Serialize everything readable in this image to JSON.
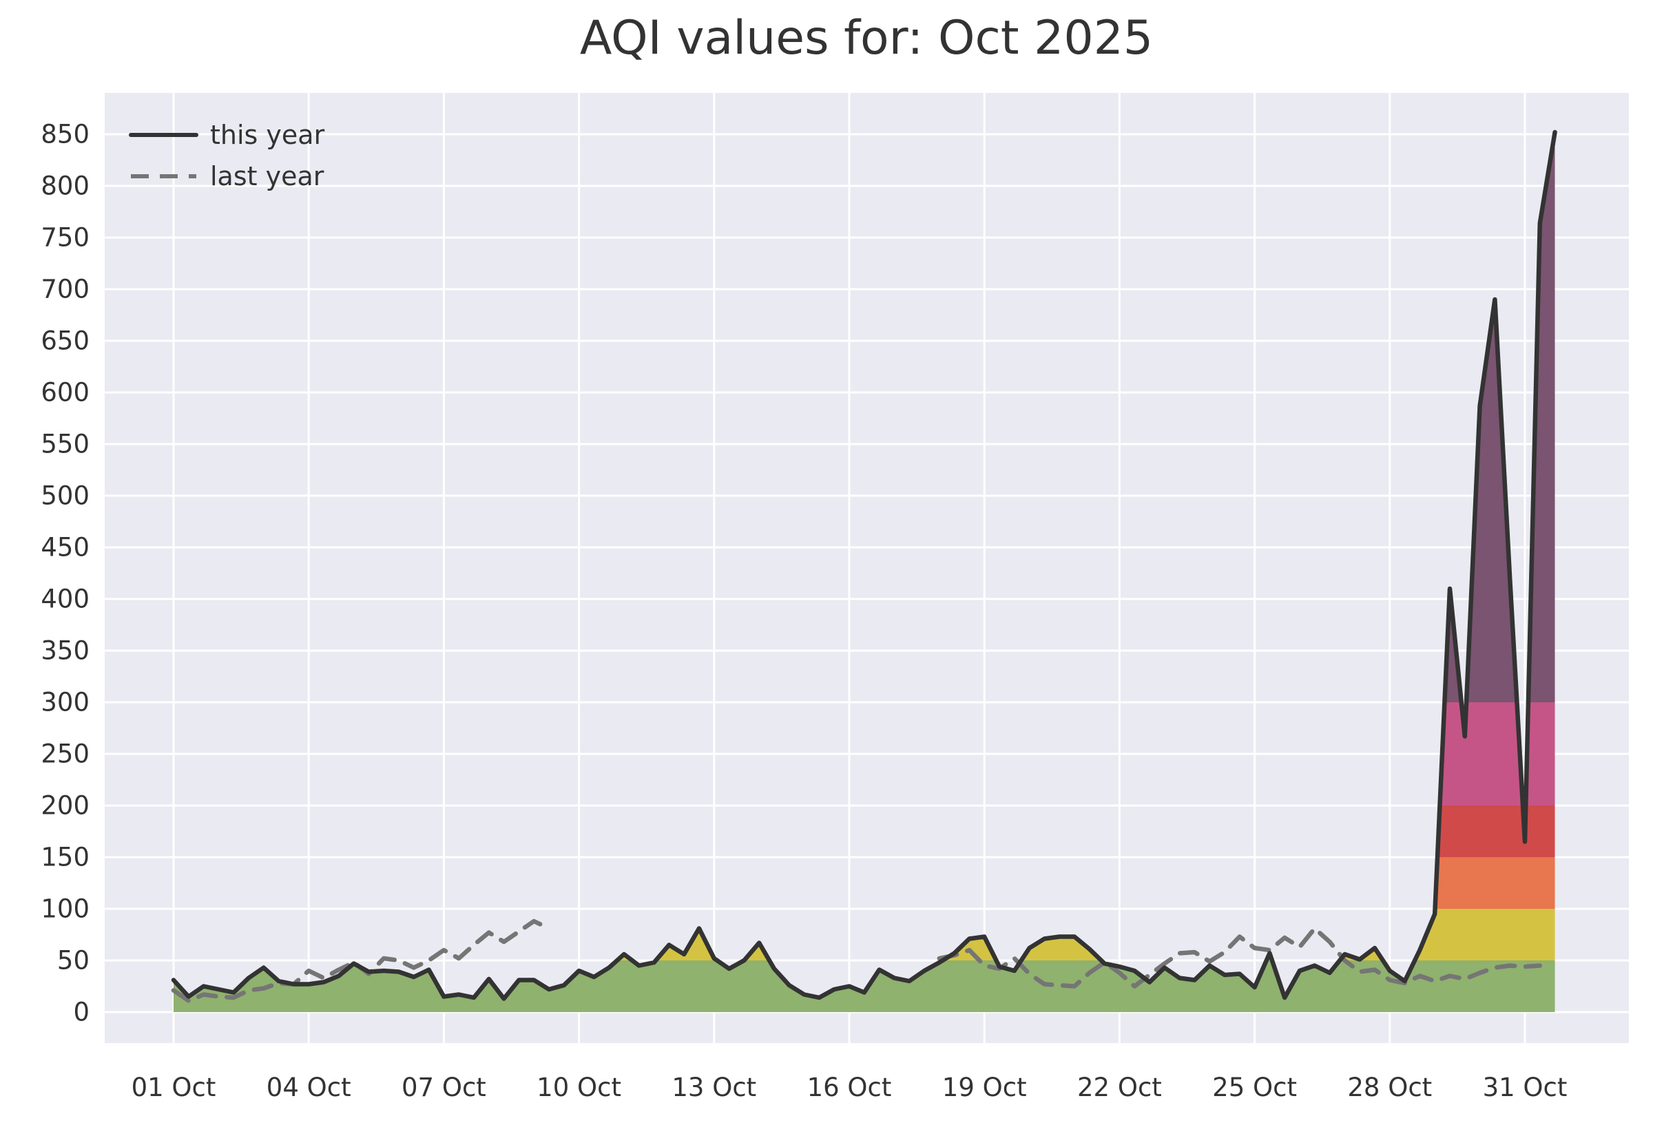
{
  "chart_data": {
    "type": "line",
    "title": "AQI values for: Oct 2025",
    "xlabel": "",
    "ylabel": "",
    "x_start_label": "01 Oct",
    "points_per_day": 3,
    "x_tick_labels": [
      "01 Oct",
      "04 Oct",
      "07 Oct",
      "10 Oct",
      "13 Oct",
      "16 Oct",
      "19 Oct",
      "22 Oct",
      "25 Oct",
      "28 Oct",
      "31 Oct"
    ],
    "x_tick_days": [
      0,
      3,
      6,
      9,
      12,
      15,
      18,
      21,
      24,
      27,
      30
    ],
    "y_ticks": [
      0,
      50,
      100,
      150,
      200,
      250,
      300,
      350,
      400,
      450,
      500,
      550,
      600,
      650,
      700,
      750,
      800,
      850
    ],
    "ylim": [
      0,
      890
    ],
    "grid": true,
    "legend_position": "upper-left",
    "series": [
      {
        "name": "this year",
        "style": "solid",
        "color": "#333333",
        "values": [
          31,
          15,
          25,
          22,
          19,
          33,
          43,
          30,
          27,
          27,
          29,
          35,
          47,
          39,
          40,
          39,
          34,
          41,
          15,
          17,
          14,
          32,
          13,
          31,
          31,
          22,
          26,
          40,
          34,
          43,
          56,
          45,
          48,
          65,
          56,
          81,
          52,
          42,
          50,
          67,
          42,
          26,
          17,
          14,
          22,
          25,
          19,
          41,
          33,
          30,
          40,
          48,
          57,
          71,
          73,
          44,
          40,
          62,
          71,
          73,
          73,
          61,
          47,
          44,
          40,
          29,
          43,
          33,
          31,
          45,
          36,
          37,
          24,
          57,
          14,
          40,
          45,
          38,
          56,
          51,
          62,
          40,
          30,
          60,
          95,
          410,
          267,
          587,
          690,
          420,
          165,
          764,
          852
        ]
      },
      {
        "name": "last year",
        "style": "dashed",
        "color": "#757575",
        "values": [
          21,
          11,
          17,
          15,
          14,
          21,
          23,
          28,
          27,
          40,
          33,
          41,
          48,
          37,
          52,
          50,
          43,
          50,
          60,
          52,
          65,
          77,
          68,
          78,
          88,
          81,
          null,
          null,
          null,
          null,
          null,
          null,
          null,
          null,
          null,
          null,
          null,
          null,
          null,
          null,
          null,
          null,
          null,
          null,
          null,
          null,
          null,
          null,
          null,
          null,
          null,
          52,
          55,
          60,
          45,
          42,
          52,
          37,
          27,
          26,
          25,
          38,
          48,
          38,
          25,
          36,
          47,
          57,
          58,
          49,
          58,
          73,
          62,
          60,
          72,
          63,
          81,
          68,
          50,
          39,
          41,
          31,
          28,
          35,
          30,
          35,
          32,
          38,
          43,
          45,
          44,
          45,
          null
        ]
      }
    ],
    "aqi_bands": [
      {
        "label": "good",
        "min": 0,
        "max": 50,
        "color": "#8fb26e"
      },
      {
        "label": "moderate",
        "min": 50,
        "max": 100,
        "color": "#d4c342"
      },
      {
        "label": "unhealthy-for-sensitive-groups",
        "min": 100,
        "max": 150,
        "color": "#e8764e"
      },
      {
        "label": "unhealthy",
        "min": 150,
        "max": 200,
        "color": "#d04a4a"
      },
      {
        "label": "very-unhealthy",
        "min": 200,
        "max": 300,
        "color": "#c55586"
      },
      {
        "label": "hazardous",
        "min": 300,
        "max": 890,
        "color": "#7a5470"
      }
    ],
    "plot_background": "#eaeaf2",
    "gridline_color": "#ffffff",
    "legend": [
      {
        "label": "this year"
      },
      {
        "label": "last year"
      }
    ]
  }
}
